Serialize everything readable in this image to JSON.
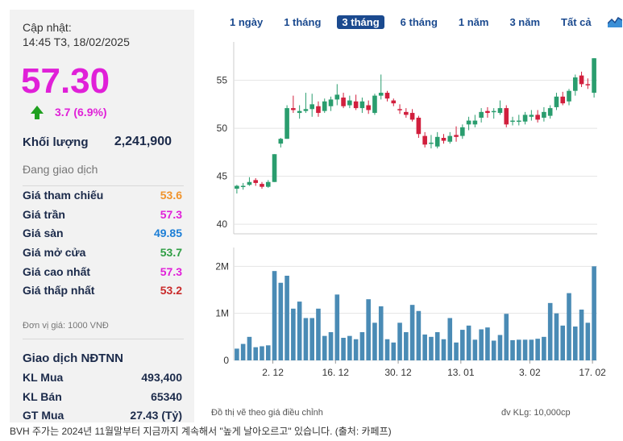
{
  "stock": {
    "update_label": "Cập nhật:",
    "update_time": "14:45 T3, 18/02/2025",
    "price": "57.30",
    "change": "3.7 (6.9%)",
    "volume_label": "Khối lượng",
    "volume_value": "2,241,900",
    "status": "Đang giao dịch"
  },
  "prices": [
    {
      "label": "Giá tham chiếu",
      "value": "53.6",
      "color": "#f0932b"
    },
    {
      "label": "Giá trần",
      "value": "57.3",
      "color": "#e020d8"
    },
    {
      "label": "Giá sàn",
      "value": "49.85",
      "color": "#1c7ed6"
    },
    {
      "label": "Giá mở cửa",
      "value": "53.7",
      "color": "#2f9e44"
    },
    {
      "label": "Giá cao nhất",
      "value": "57.3",
      "color": "#e020d8"
    },
    {
      "label": "Giá thấp nhất",
      "value": "53.2",
      "color": "#c92a2a"
    }
  ],
  "unit_note": "Đơn vị giá: 1000 VNĐ",
  "foreign": {
    "title": "Giao dịch NĐTNN",
    "rows": [
      {
        "label": "KL Mua",
        "value": "493,400"
      },
      {
        "label": "KL Bán",
        "value": "65340"
      },
      {
        "label": "GT Mua",
        "value": "27.43 (Tỷ)"
      }
    ]
  },
  "periods": [
    "1 ngày",
    "1 tháng",
    "3 tháng",
    "6 tháng",
    "1 năm",
    "3 năm",
    "Tất cả"
  ],
  "active_period": "3 tháng",
  "colors": {
    "up": "#2a9d6e",
    "down": "#d11f3d",
    "volume": "#4a8bb5",
    "grid": "#e4e4e4"
  },
  "chart_data": {
    "type": "candlestick",
    "x_ticks": [
      "2. 12",
      "16. 12",
      "30. 12",
      "13. 01",
      "3. 02",
      "17. 02"
    ],
    "price_ticks": [
      40,
      45,
      50,
      55
    ],
    "volume_ticks": [
      "0",
      "1M",
      "2M"
    ],
    "price_ylim": [
      39,
      59
    ],
    "volume_ylim": [
      0,
      2400000
    ],
    "candles": [
      {
        "o": 43.7,
        "h": 44.1,
        "l": 43.2,
        "c": 44.0
      },
      {
        "o": 44.0,
        "h": 44.3,
        "l": 43.6,
        "c": 44.0
      },
      {
        "o": 44.1,
        "h": 44.9,
        "l": 44.0,
        "c": 44.4
      },
      {
        "o": 44.6,
        "h": 44.8,
        "l": 44.0,
        "c": 44.3
      },
      {
        "o": 44.2,
        "h": 44.4,
        "l": 43.7,
        "c": 43.9
      },
      {
        "o": 43.9,
        "h": 44.6,
        "l": 43.8,
        "c": 44.4
      },
      {
        "o": 44.4,
        "h": 47.3,
        "l": 44.4,
        "c": 47.3
      },
      {
        "o": 48.4,
        "h": 49.0,
        "l": 48.0,
        "c": 48.9
      },
      {
        "o": 48.9,
        "h": 52.4,
        "l": 48.9,
        "c": 52.1
      },
      {
        "o": 52.1,
        "h": 53.4,
        "l": 51.6,
        "c": 51.9
      },
      {
        "o": 51.6,
        "h": 52.4,
        "l": 51.0,
        "c": 51.8
      },
      {
        "o": 51.8,
        "h": 53.7,
        "l": 51.6,
        "c": 52.0
      },
      {
        "o": 52.0,
        "h": 53.6,
        "l": 51.2,
        "c": 52.5
      },
      {
        "o": 52.3,
        "h": 52.8,
        "l": 51.2,
        "c": 51.6
      },
      {
        "o": 51.8,
        "h": 53.1,
        "l": 51.6,
        "c": 52.8
      },
      {
        "o": 52.3,
        "h": 53.3,
        "l": 51.8,
        "c": 53.0
      },
      {
        "o": 53.0,
        "h": 54.6,
        "l": 52.4,
        "c": 53.5
      },
      {
        "o": 53.2,
        "h": 53.7,
        "l": 52.1,
        "c": 52.3
      },
      {
        "o": 52.4,
        "h": 53.4,
        "l": 52.1,
        "c": 52.9
      },
      {
        "o": 52.8,
        "h": 53.5,
        "l": 51.9,
        "c": 52.1
      },
      {
        "o": 52.1,
        "h": 53.2,
        "l": 51.6,
        "c": 52.8
      },
      {
        "o": 52.4,
        "h": 52.9,
        "l": 51.5,
        "c": 51.9
      },
      {
        "o": 51.6,
        "h": 53.6,
        "l": 51.4,
        "c": 53.4
      },
      {
        "o": 53.4,
        "h": 55.6,
        "l": 53.0,
        "c": 53.7
      },
      {
        "o": 53.7,
        "h": 53.9,
        "l": 52.8,
        "c": 53.1
      },
      {
        "o": 52.9,
        "h": 53.1,
        "l": 52.3,
        "c": 52.6
      },
      {
        "o": 52.0,
        "h": 52.5,
        "l": 51.5,
        "c": 51.9
      },
      {
        "o": 51.7,
        "h": 52.1,
        "l": 51.1,
        "c": 51.4
      },
      {
        "o": 51.6,
        "h": 52.0,
        "l": 50.7,
        "c": 50.9
      },
      {
        "o": 51.1,
        "h": 51.3,
        "l": 49.0,
        "c": 49.4
      },
      {
        "o": 49.2,
        "h": 49.6,
        "l": 48.0,
        "c": 48.3
      },
      {
        "o": 48.4,
        "h": 49.3,
        "l": 47.9,
        "c": 48.5
      },
      {
        "o": 48.1,
        "h": 49.6,
        "l": 47.9,
        "c": 49.1
      },
      {
        "o": 49.0,
        "h": 49.4,
        "l": 48.4,
        "c": 48.7
      },
      {
        "o": 48.6,
        "h": 49.6,
        "l": 48.4,
        "c": 49.2
      },
      {
        "o": 49.3,
        "h": 50.2,
        "l": 48.6,
        "c": 49.1
      },
      {
        "o": 49.2,
        "h": 50.4,
        "l": 48.9,
        "c": 50.1
      },
      {
        "o": 50.4,
        "h": 51.2,
        "l": 49.8,
        "c": 50.8
      },
      {
        "o": 50.4,
        "h": 51.4,
        "l": 50.1,
        "c": 50.8
      },
      {
        "o": 51.1,
        "h": 52.1,
        "l": 50.6,
        "c": 51.7
      },
      {
        "o": 51.8,
        "h": 52.2,
        "l": 51.1,
        "c": 51.6
      },
      {
        "o": 51.7,
        "h": 52.1,
        "l": 51.0,
        "c": 51.8
      },
      {
        "o": 51.6,
        "h": 52.9,
        "l": 51.4,
        "c": 52.1
      },
      {
        "o": 52.1,
        "h": 52.4,
        "l": 50.1,
        "c": 50.4
      },
      {
        "o": 50.8,
        "h": 51.2,
        "l": 50.3,
        "c": 50.8
      },
      {
        "o": 50.8,
        "h": 51.4,
        "l": 50.3,
        "c": 50.8
      },
      {
        "o": 50.7,
        "h": 51.7,
        "l": 50.4,
        "c": 51.4
      },
      {
        "o": 51.2,
        "h": 51.9,
        "l": 50.8,
        "c": 51.4
      },
      {
        "o": 51.4,
        "h": 51.9,
        "l": 50.6,
        "c": 50.9
      },
      {
        "o": 51.1,
        "h": 52.2,
        "l": 50.7,
        "c": 51.7
      },
      {
        "o": 51.3,
        "h": 52.4,
        "l": 51.0,
        "c": 52.1
      },
      {
        "o": 52.2,
        "h": 53.7,
        "l": 51.9,
        "c": 53.3
      },
      {
        "o": 53.3,
        "h": 53.8,
        "l": 52.4,
        "c": 52.6
      },
      {
        "o": 52.8,
        "h": 54.1,
        "l": 52.4,
        "c": 53.9
      },
      {
        "o": 53.9,
        "h": 55.6,
        "l": 53.4,
        "c": 55.3
      },
      {
        "o": 55.5,
        "h": 55.9,
        "l": 54.3,
        "c": 54.6
      },
      {
        "o": 54.6,
        "h": 55.2,
        "l": 54.1,
        "c": 54.5
      },
      {
        "o": 53.7,
        "h": 57.3,
        "l": 53.2,
        "c": 57.3
      }
    ],
    "volumes": [
      250000,
      350000,
      500000,
      280000,
      300000,
      320000,
      1900000,
      1650000,
      1800000,
      1100000,
      1250000,
      900000,
      900000,
      1100000,
      520000,
      600000,
      1400000,
      480000,
      520000,
      450000,
      600000,
      1300000,
      800000,
      1150000,
      450000,
      380000,
      800000,
      600000,
      1180000,
      1050000,
      550000,
      500000,
      600000,
      450000,
      900000,
      380000,
      650000,
      740000,
      440000,
      660000,
      700000,
      420000,
      540000,
      990000,
      430000,
      440000,
      440000,
      440000,
      460000,
      500000,
      1220000,
      1000000,
      740000,
      1430000,
      720000,
      1080000,
      800000,
      2000000
    ]
  },
  "footnote_left": "Đồ thị vẽ theo giá điều chỉnh",
  "footnote_right": "đv KLg: 10,000cp",
  "caption": "BVH 주가는 2024년 11월말부터 지금까지 계속해서 \"높게 날아오르고\" 있습니다. (출처: 카페프)"
}
